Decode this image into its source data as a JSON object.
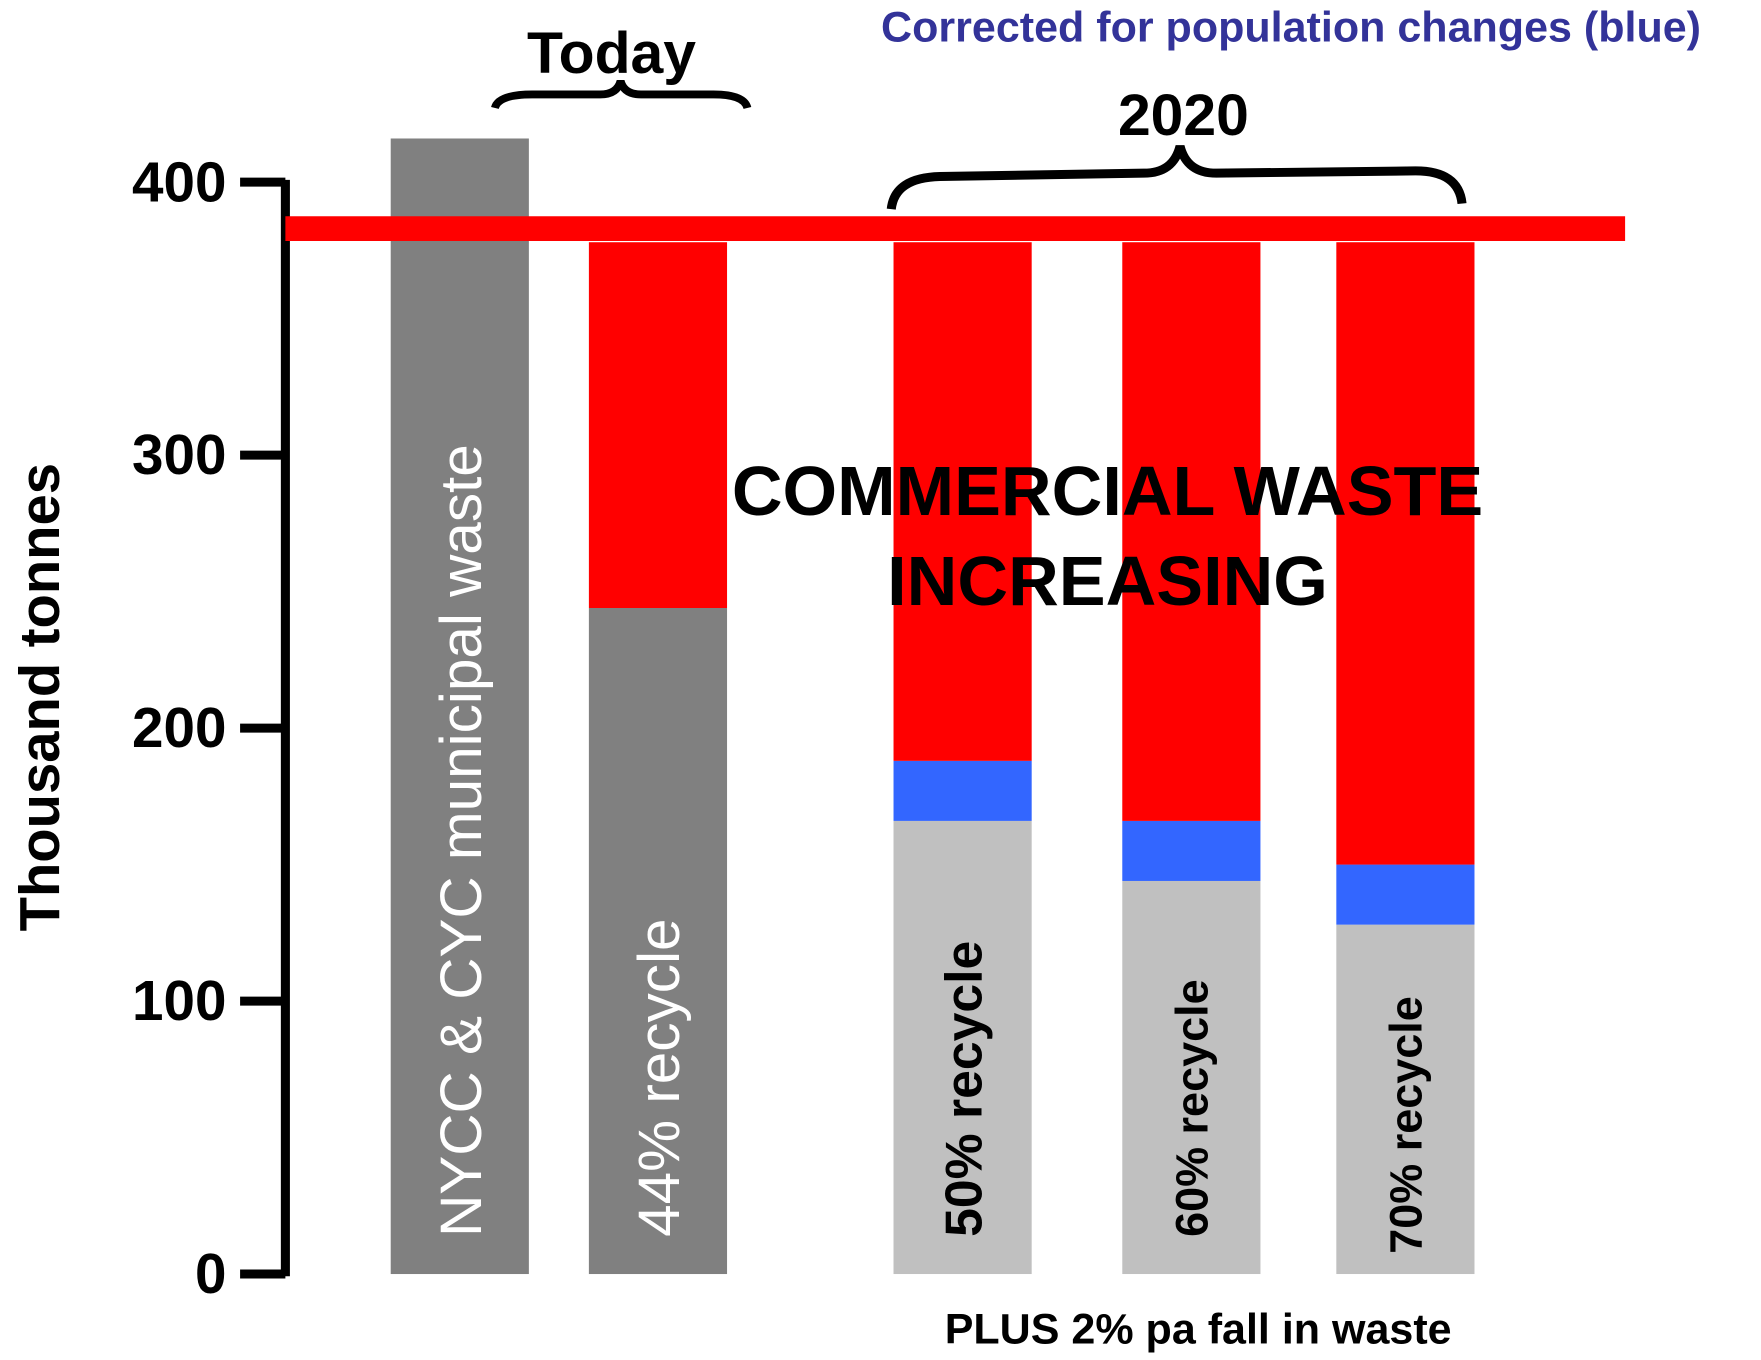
{
  "chart_data": {
    "type": "stacked_bar",
    "subtitle": "Corrected for population changes (blue)",
    "ylabel": "Thousand tonnes",
    "ylim": [
      0,
      400
    ],
    "yticks": [
      0,
      100,
      200,
      300,
      400
    ],
    "series": [
      {
        "colors": [
          "#808080",
          "#808080",
          "#c0c0c0",
          "#c0c0c0",
          "#c0c0c0"
        ],
        "values": [
          416,
          244,
          166,
          144,
          128
        ]
      },
      {
        "color": "#3366ff",
        "values": [
          null,
          null,
          22,
          22,
          22
        ]
      },
      {
        "color": "#ff0000",
        "values": [
          null,
          134,
          190,
          212,
          228
        ]
      }
    ],
    "bar_labels": [
      "NYCC & CYC municipal waste",
      "44% recycle",
      "50% recycle",
      "60% recycle",
      "70% recycle"
    ],
    "reference_line": {
      "value": 383,
      "color": "#ff0000"
    },
    "group_labels": [
      "Today",
      "2020"
    ],
    "annotation": [
      "COMMERCIAL WASTE",
      "INCREASING"
    ],
    "footnote": "PLUS 2% pa fall in waste"
  }
}
